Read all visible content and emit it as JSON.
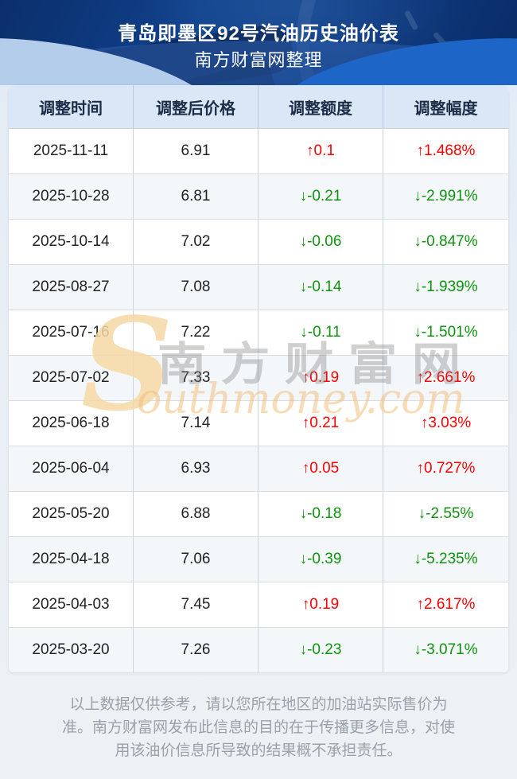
{
  "hero": {
    "title": "青岛即墨区92号汽油历史油价表",
    "subtitle": "南方财富网整理"
  },
  "table": {
    "columns": [
      "调整时间",
      "调整后价格",
      "调整额度",
      "调整幅度"
    ],
    "arrows": {
      "up": "↑",
      "down": "↓"
    },
    "colors": {
      "up": "#fe0000",
      "down": "#0e930e"
    },
    "rows": [
      {
        "date": "2025-11-11",
        "price": "6.91",
        "change": "0.1",
        "pct": "1.468%",
        "dir": "up"
      },
      {
        "date": "2025-10-28",
        "price": "6.81",
        "change": "-0.21",
        "pct": "-2.991%",
        "dir": "down"
      },
      {
        "date": "2025-10-14",
        "price": "7.02",
        "change": "-0.06",
        "pct": "-0.847%",
        "dir": "down"
      },
      {
        "date": "2025-08-27",
        "price": "7.08",
        "change": "-0.14",
        "pct": "-1.939%",
        "dir": "down"
      },
      {
        "date": "2025-07-16",
        "price": "7.22",
        "change": "-0.11",
        "pct": "-1.501%",
        "dir": "down"
      },
      {
        "date": "2025-07-02",
        "price": "7.33",
        "change": "0.19",
        "pct": "2.661%",
        "dir": "up"
      },
      {
        "date": "2025-06-18",
        "price": "7.14",
        "change": "0.21",
        "pct": "3.03%",
        "dir": "up"
      },
      {
        "date": "2025-06-04",
        "price": "6.93",
        "change": "0.05",
        "pct": "0.727%",
        "dir": "up"
      },
      {
        "date": "2025-05-20",
        "price": "6.88",
        "change": "-0.18",
        "pct": "-2.55%",
        "dir": "down"
      },
      {
        "date": "2025-04-18",
        "price": "7.06",
        "change": "-0.39",
        "pct": "-5.235%",
        "dir": "down"
      },
      {
        "date": "2025-04-03",
        "price": "7.45",
        "change": "0.19",
        "pct": "2.617%",
        "dir": "up"
      },
      {
        "date": "2025-03-20",
        "price": "7.26",
        "change": "-0.23",
        "pct": "-3.071%",
        "dir": "down"
      }
    ]
  },
  "watermark": {
    "cn": "南方财富网",
    "en_initial": "S",
    "en_rest": "outhmoney.com"
  },
  "footer": {
    "disclaimer": "以上数据仅供参考，请以您所在地区的加油站实际售价为准。南方财富网发布此信息的目的在于传播更多信息，对使用该油价信息所导致的结果概不承担责任。"
  }
}
